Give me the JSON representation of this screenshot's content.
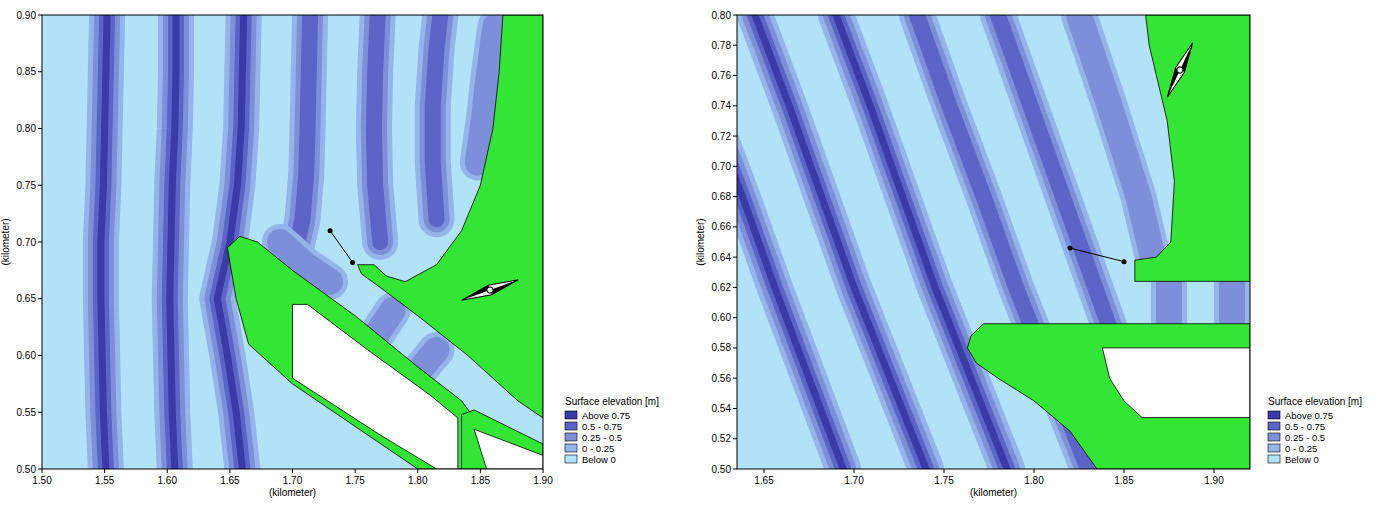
{
  "chart_data": [
    {
      "type": "contour",
      "x_label": "(kilometer)",
      "y_label": "(kilometer)",
      "xlim": [
        1.5,
        1.9
      ],
      "ylim": [
        0.5,
        0.9
      ],
      "xticks": [
        {
          "value": 1.5,
          "label": "1.50"
        },
        {
          "value": 1.55,
          "label": "1.55"
        },
        {
          "value": 1.6,
          "label": "1.60"
        },
        {
          "value": 1.65,
          "label": "1.65"
        },
        {
          "value": 1.7,
          "label": "1.70"
        },
        {
          "value": 1.75,
          "label": "1.75"
        },
        {
          "value": 1.8,
          "label": "1.80"
        },
        {
          "value": 1.85,
          "label": "1.85"
        },
        {
          "value": 1.9,
          "label": "1.90"
        }
      ],
      "yticks": [
        {
          "value": 0.5,
          "label": "0.50"
        },
        {
          "value": 0.55,
          "label": "0.55"
        },
        {
          "value": 0.6,
          "label": "0.60"
        },
        {
          "value": 0.65,
          "label": "0.65"
        },
        {
          "value": 0.7,
          "label": "0.70"
        },
        {
          "value": 0.75,
          "label": "0.75"
        },
        {
          "value": 0.8,
          "label": "0.80"
        },
        {
          "value": 0.85,
          "label": "0.85"
        },
        {
          "value": 0.9,
          "label": "0.90"
        }
      ],
      "legend": "right",
      "legend_title": "Surface elevation [m]",
      "levels": [
        {
          "label": "Above 0.75",
          "min": 0.75,
          "color": "#3a3aa8"
        },
        {
          "label": "0.5 - 0.75",
          "min": 0.5,
          "color": "#5c64c8"
        },
        {
          "label": "0.25 - 0.5",
          "min": 0.25,
          "color": "#7d8fd9"
        },
        {
          "label": "0 - 0.25",
          "min": 0,
          "color": "#95b4ea"
        },
        {
          "label": "Below 0",
          "min": null,
          "color": "#b2e2f8"
        }
      ],
      "crests": [
        {
          "x": [
            1.551,
            1.549,
            1.548,
            1.547,
            1.547,
            1.549,
            1.55,
            1.551,
            1.552
          ],
          "y": [
            0.5,
            0.55,
            0.6,
            0.65,
            0.7,
            0.75,
            0.8,
            0.85,
            0.9
          ],
          "peak": 0.8
        },
        {
          "x": [
            1.606,
            1.604,
            1.603,
            1.602,
            1.603,
            1.604,
            1.606,
            1.607,
            1.607
          ],
          "y": [
            0.5,
            0.55,
            0.6,
            0.65,
            0.7,
            0.75,
            0.8,
            0.85,
            0.9
          ],
          "peak": 0.8
        },
        {
          "x": [
            1.66,
            1.655,
            1.648,
            1.64,
            1.65,
            1.656,
            1.659,
            1.66,
            1.661
          ],
          "y": [
            0.5,
            0.55,
            0.6,
            0.65,
            0.7,
            0.75,
            0.8,
            0.85,
            0.9
          ],
          "peak": 0.8
        },
        {
          "x": [
            1.7,
            1.708,
            1.711,
            1.712,
            1.713,
            1.714
          ],
          "y": [
            0.68,
            0.72,
            0.76,
            0.8,
            0.85,
            0.9
          ],
          "peak": 0.7
        },
        {
          "x": [
            1.77,
            1.766,
            1.765,
            1.766,
            1.768
          ],
          "y": [
            0.7,
            0.75,
            0.8,
            0.85,
            0.9
          ],
          "peak": 0.6
        },
        {
          "x": [
            1.815,
            1.812,
            1.812,
            1.815,
            1.818
          ],
          "y": [
            0.72,
            0.77,
            0.82,
            0.87,
            0.9
          ],
          "peak": 0.55
        },
        {
          "x": [
            1.848,
            1.853,
            1.857,
            1.862
          ],
          "y": [
            0.77,
            0.81,
            0.85,
            0.89
          ],
          "peak": 0.45
        },
        {
          "x": [
            1.69,
            1.71,
            1.73
          ],
          "y": [
            0.7,
            0.68,
            0.665
          ],
          "peak": 0.3
        },
        {
          "x": [
            1.765,
            1.78
          ],
          "y": [
            0.615,
            0.64
          ],
          "peak": 0.3
        },
        {
          "x": [
            1.8,
            1.815
          ],
          "y": [
            0.585,
            0.605
          ],
          "peak": 0.3
        }
      ],
      "land": {
        "color": "#33e633",
        "polygons": [
          {
            "x": [
              1.868,
              1.9,
              1.9,
              1.88,
              1.84,
              1.8,
              1.77,
              1.755,
              1.752,
              1.765,
              1.775,
              1.79,
              1.815,
              1.835,
              1.85,
              1.86,
              1.865
            ],
            "y": [
              0.9,
              0.9,
              0.545,
              0.56,
              0.6,
              0.635,
              0.66,
              0.672,
              0.68,
              0.68,
              0.67,
              0.665,
              0.68,
              0.71,
              0.75,
              0.8,
              0.85
            ]
          },
          {
            "x": [
              1.648,
              1.658,
              1.672,
              1.7,
              1.75,
              1.8,
              1.835,
              1.845,
              1.835,
              1.8,
              1.76,
              1.7,
              1.665,
              1.655
            ],
            "y": [
              0.695,
              0.705,
              0.7,
              0.675,
              0.635,
              0.59,
              0.56,
              0.545,
              0.5,
              0.5,
              0.53,
              0.575,
              0.61,
              0.65
            ]
          },
          {
            "x": [
              1.835,
              1.845,
              1.9,
              1.9,
              1.835
            ],
            "y": [
              0.548,
              0.552,
              0.522,
              0.5,
              0.5
            ]
          }
        ]
      },
      "dry": {
        "color": "#ffffff",
        "polygons": [
          {
            "x": [
              1.7,
              1.712,
              1.76,
              1.81,
              1.832,
              1.832,
              1.815,
              1.77,
              1.7
            ],
            "y": [
              0.645,
              0.645,
              0.605,
              0.565,
              0.545,
              0.5,
              0.5,
              0.53,
              0.58
            ]
          },
          {
            "x": [
              1.845,
              1.9,
              1.9,
              1.855
            ],
            "y": [
              0.535,
              0.512,
              0.5,
              0.5
            ]
          }
        ]
      },
      "section": {
        "x": [
          1.73,
          1.748
        ],
        "y": [
          0.71,
          0.682
        ]
      }
    },
    {
      "type": "contour",
      "x_label": "(kilometer)",
      "y_label": "(kilometer)",
      "xlim": [
        1.635,
        1.92
      ],
      "ylim": [
        0.5,
        0.8
      ],
      "xticks": [
        {
          "value": 1.65,
          "label": "1.65"
        },
        {
          "value": 1.7,
          "label": "1.70"
        },
        {
          "value": 1.75,
          "label": "1.75"
        },
        {
          "value": 1.8,
          "label": "1.80"
        },
        {
          "value": 1.85,
          "label": "1.85"
        },
        {
          "value": 1.9,
          "label": "1.90"
        }
      ],
      "yticks": [
        {
          "value": 0.5,
          "label": "0.50"
        },
        {
          "value": 0.52,
          "label": "0.52"
        },
        {
          "value": 0.54,
          "label": "0.54"
        },
        {
          "value": 0.56,
          "label": "0.56"
        },
        {
          "value": 0.58,
          "label": "0.58"
        },
        {
          "value": 0.6,
          "label": "0.60"
        },
        {
          "value": 0.62,
          "label": "0.62"
        },
        {
          "value": 0.64,
          "label": "0.64"
        },
        {
          "value": 0.66,
          "label": "0.66"
        },
        {
          "value": 0.68,
          "label": "0.68"
        },
        {
          "value": 0.7,
          "label": "0.70"
        },
        {
          "value": 0.72,
          "label": "0.72"
        },
        {
          "value": 0.74,
          "label": "0.74"
        },
        {
          "value": 0.76,
          "label": "0.76"
        },
        {
          "value": 0.78,
          "label": "0.78"
        },
        {
          "value": 0.8,
          "label": "0.80"
        }
      ],
      "legend": "right",
      "legend_title": "Surface elevation [m]",
      "levels": [
        {
          "label": "Above 0.75",
          "min": 0.75,
          "color": "#3a3aa8"
        },
        {
          "label": "0.5 - 0.75",
          "min": 0.5,
          "color": "#5c64c8"
        },
        {
          "label": "0.25 - 0.5",
          "min": 0.25,
          "color": "#7d8fd9"
        },
        {
          "label": "0 - 0.25",
          "min": 0,
          "color": "#95b4ea"
        },
        {
          "label": "Below 0",
          "min": null,
          "color": "#b2e2f8"
        }
      ],
      "crests": [
        {
          "x": [
            1.6,
            1.619,
            1.638,
            1.656,
            1.675,
            1.694
          ],
          "y": [
            0.8,
            0.74,
            0.68,
            0.62,
            0.56,
            0.5
          ],
          "peak": 0.8
        },
        {
          "x": [
            1.645,
            1.664,
            1.682,
            1.7,
            1.72,
            1.74
          ],
          "y": [
            0.8,
            0.74,
            0.68,
            0.62,
            0.56,
            0.5
          ],
          "peak": 0.8
        },
        {
          "x": [
            1.69,
            1.709,
            1.727,
            1.745,
            1.765,
            1.785
          ],
          "y": [
            0.8,
            0.74,
            0.68,
            0.62,
            0.56,
            0.5
          ],
          "peak": 0.8
        },
        {
          "x": [
            1.735,
            1.753,
            1.772,
            1.79,
            1.81,
            1.83
          ],
          "y": [
            0.8,
            0.74,
            0.68,
            0.62,
            0.56,
            0.5
          ],
          "peak": 0.7
        },
        {
          "x": [
            1.78,
            1.798,
            1.816,
            1.834,
            1.852
          ],
          "y": [
            0.8,
            0.74,
            0.68,
            0.62,
            0.56
          ],
          "peak": 0.6
        },
        {
          "x": [
            1.825,
            1.842,
            1.858,
            1.866
          ],
          "y": [
            0.8,
            0.74,
            0.68,
            0.64
          ],
          "peak": 0.5
        },
        {
          "x": [
            1.875,
            1.875
          ],
          "y": [
            0.598,
            0.622
          ],
          "peak": 0.3
        },
        {
          "x": [
            1.91,
            1.91
          ],
          "y": [
            0.598,
            0.622
          ],
          "peak": 0.3
        }
      ],
      "land": {
        "color": "#33e633",
        "polygons": [
          {
            "x": [
              1.862,
              1.92,
              1.92,
              1.856,
              1.856,
              1.868,
              1.876,
              1.878,
              1.874,
              1.868,
              1.864
            ],
            "y": [
              0.8,
              0.8,
              0.624,
              0.624,
              0.638,
              0.64,
              0.65,
              0.69,
              0.73,
              0.76,
              0.78
            ]
          },
          {
            "x": [
              1.765,
              1.772,
              1.92,
              1.92,
              1.835,
              1.82,
              1.8,
              1.78,
              1.768,
              1.763
            ],
            "y": [
              0.588,
              0.596,
              0.596,
              0.5,
              0.5,
              0.525,
              0.545,
              0.56,
              0.57,
              0.58
            ]
          }
        ]
      },
      "dry": {
        "color": "#ffffff",
        "polygons": [
          {
            "x": [
              1.838,
              1.92,
              1.92,
              1.86,
              1.85,
              1.842
            ],
            "y": [
              0.58,
              0.58,
              0.534,
              0.534,
              0.545,
              0.56
            ]
          }
        ]
      },
      "section": {
        "x": [
          1.82,
          1.85
        ],
        "y": [
          0.646,
          0.637
        ]
      }
    }
  ]
}
